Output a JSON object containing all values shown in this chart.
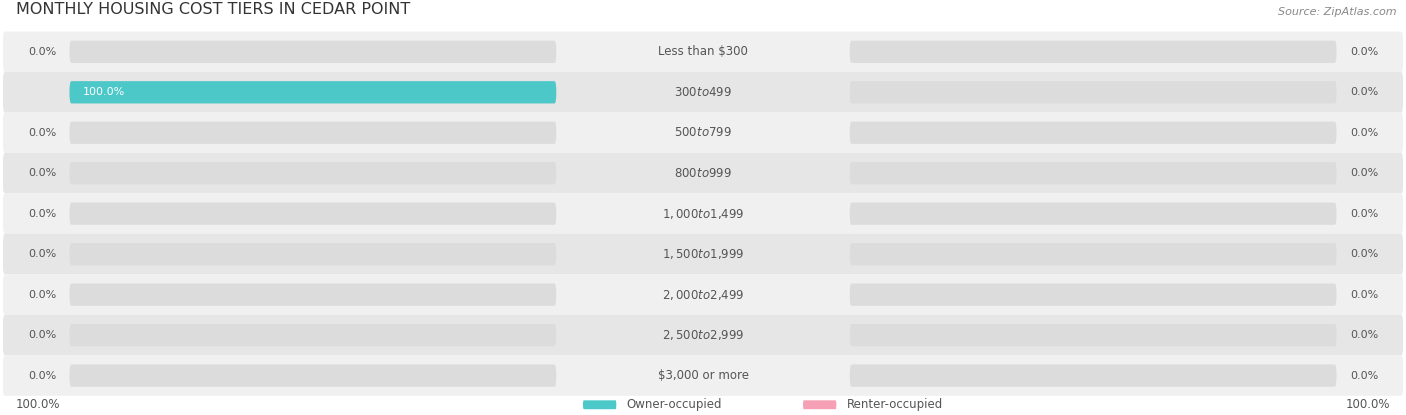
{
  "title": "MONTHLY HOUSING COST TIERS IN CEDAR POINT",
  "source_text": "Source: ZipAtlas.com",
  "categories": [
    "Less than $300",
    "$300 to $499",
    "$500 to $799",
    "$800 to $999",
    "$1,000 to $1,499",
    "$1,500 to $1,999",
    "$2,000 to $2,499",
    "$2,500 to $2,999",
    "$3,000 or more"
  ],
  "owner_values": [
    0.0,
    100.0,
    0.0,
    0.0,
    0.0,
    0.0,
    0.0,
    0.0,
    0.0
  ],
  "renter_values": [
    0.0,
    0.0,
    0.0,
    0.0,
    0.0,
    0.0,
    0.0,
    0.0,
    0.0
  ],
  "owner_color": "#4dc8c8",
  "renter_color": "#f5a0b5",
  "owner_label": "Owner-occupied",
  "renter_label": "Renter-occupied",
  "bar_bg_color": "#dcdcdc",
  "row_bg_even": "#f0f0f0",
  "row_bg_odd": "#e6e6e6",
  "title_color": "#333333",
  "text_color": "#555555",
  "source_color": "#888888",
  "white": "#ffffff",
  "max_val": 100.0,
  "bottom_left_label": "100.0%",
  "bottom_right_label": "100.0%",
  "figsize": [
    14.06,
    4.15
  ],
  "dpi": 100
}
